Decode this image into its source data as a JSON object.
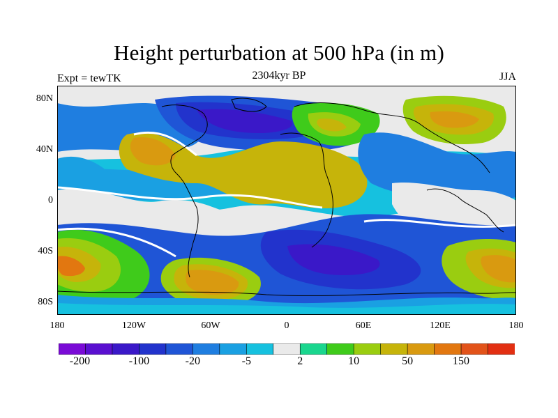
{
  "title": "Height perturbation at 500 hPa (in m)",
  "subtitle_left": "Expt = tewTK",
  "subtitle_center": "2304kyr BP",
  "subtitle_right": "JJA",
  "lat_ticks": [
    "80N",
    "40N",
    "0",
    "40S",
    "80S"
  ],
  "lon_ticks": [
    "180",
    "120W",
    "60W",
    "0",
    "60E",
    "120E",
    "180"
  ],
  "colorbar": {
    "colors": [
      "#7a0bd6",
      "#5a10d0",
      "#3a18c8",
      "#2233cc",
      "#1f55d6",
      "#1f7ee0",
      "#1aa0e2",
      "#16c1df",
      "#eaeaea",
      "#1ad68e",
      "#3fcb1b",
      "#9acd10",
      "#c6b40a",
      "#d99a10",
      "#e27710",
      "#e2531a",
      "#e22f12"
    ],
    "labels": [
      "-200",
      "-100",
      "-20",
      "-5",
      "2",
      "10",
      "50",
      "150"
    ]
  },
  "legend_levels": [
    "-200",
    "-100",
    "-20",
    "-5",
    "2",
    "10",
    "50",
    "150"
  ]
}
